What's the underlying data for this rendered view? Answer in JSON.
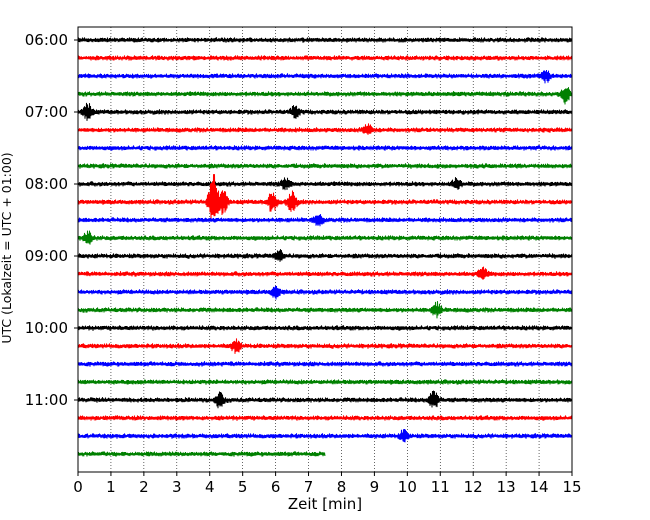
{
  "chart_data": {
    "type": "line",
    "title": "",
    "xlabel": "Zeit  [min]",
    "ylabel": "UTC (Lokalzeit = UTC + 01:00)",
    "xlim": [
      0,
      15
    ],
    "x_ticks": [
      0,
      1,
      2,
      3,
      4,
      5,
      6,
      7,
      8,
      9,
      10,
      11,
      12,
      13,
      14,
      15
    ],
    "y_ticks": [
      "06:00",
      "07:00",
      "08:00",
      "09:00",
      "10:00",
      "11:00"
    ],
    "grid": "vertical dotted",
    "trace_interval_min": 15,
    "colors_cycle": [
      "#000000",
      "#ff0000",
      "#0000ff",
      "#008000"
    ],
    "traces": [
      {
        "start": "06:00",
        "color": "#000000",
        "end_min": 15
      },
      {
        "start": "06:15",
        "color": "#ff0000",
        "end_min": 15
      },
      {
        "start": "06:30",
        "color": "#0000ff",
        "end_min": 15
      },
      {
        "start": "06:45",
        "color": "#008000",
        "end_min": 15
      },
      {
        "start": "07:00",
        "color": "#000000",
        "end_min": 15
      },
      {
        "start": "07:15",
        "color": "#ff0000",
        "end_min": 15
      },
      {
        "start": "07:30",
        "color": "#0000ff",
        "end_min": 15
      },
      {
        "start": "07:45",
        "color": "#008000",
        "end_min": 15
      },
      {
        "start": "08:00",
        "color": "#000000",
        "end_min": 15
      },
      {
        "start": "08:15",
        "color": "#ff0000",
        "end_min": 15
      },
      {
        "start": "08:30",
        "color": "#0000ff",
        "end_min": 15
      },
      {
        "start": "08:45",
        "color": "#008000",
        "end_min": 15
      },
      {
        "start": "09:00",
        "color": "#000000",
        "end_min": 15
      },
      {
        "start": "09:15",
        "color": "#ff0000",
        "end_min": 15
      },
      {
        "start": "09:30",
        "color": "#0000ff",
        "end_min": 15
      },
      {
        "start": "09:45",
        "color": "#008000",
        "end_min": 15
      },
      {
        "start": "10:00",
        "color": "#000000",
        "end_min": 15
      },
      {
        "start": "10:15",
        "color": "#ff0000",
        "end_min": 15
      },
      {
        "start": "10:30",
        "color": "#0000ff",
        "end_min": 15
      },
      {
        "start": "10:45",
        "color": "#008000",
        "end_min": 15
      },
      {
        "start": "11:00",
        "color": "#000000",
        "end_min": 15
      },
      {
        "start": "11:15",
        "color": "#ff0000",
        "end_min": 15
      },
      {
        "start": "11:30",
        "color": "#0000ff",
        "end_min": 15
      },
      {
        "start": "11:45",
        "color": "#008000",
        "end_min": 7.5
      }
    ],
    "events": [
      {
        "trace": "07:00",
        "at_min": 0.3,
        "amplitude": 0.45
      },
      {
        "trace": "07:00",
        "at_min": 6.6,
        "amplitude": 0.3
      },
      {
        "trace": "07:15",
        "at_min": 8.8,
        "amplitude": 0.3
      },
      {
        "trace": "06:30",
        "at_min": 14.2,
        "amplitude": 0.3
      },
      {
        "trace": "06:45",
        "at_min": 14.8,
        "amplitude": 0.45
      },
      {
        "trace": "08:00",
        "at_min": 11.5,
        "amplitude": 0.3
      },
      {
        "trace": "08:00",
        "at_min": 6.3,
        "amplitude": 0.3
      },
      {
        "trace": "08:15",
        "at_min": 4.1,
        "amplitude": 1.6
      },
      {
        "trace": "08:15",
        "at_min": 4.4,
        "amplitude": 0.7
      },
      {
        "trace": "08:15",
        "at_min": 5.9,
        "amplitude": 0.55
      },
      {
        "trace": "08:15",
        "at_min": 6.5,
        "amplitude": 0.6
      },
      {
        "trace": "08:30",
        "at_min": 7.3,
        "amplitude": 0.3
      },
      {
        "trace": "08:45",
        "at_min": 0.3,
        "amplitude": 0.35
      },
      {
        "trace": "09:00",
        "at_min": 6.1,
        "amplitude": 0.3
      },
      {
        "trace": "09:15",
        "at_min": 12.3,
        "amplitude": 0.3
      },
      {
        "trace": "09:30",
        "at_min": 6.0,
        "amplitude": 0.3
      },
      {
        "trace": "09:45",
        "at_min": 10.9,
        "amplitude": 0.4
      },
      {
        "trace": "10:15",
        "at_min": 4.8,
        "amplitude": 0.35
      },
      {
        "trace": "11:00",
        "at_min": 4.3,
        "amplitude": 0.4
      },
      {
        "trace": "11:00",
        "at_min": 10.8,
        "amplitude": 0.55
      },
      {
        "trace": "11:30",
        "at_min": 9.9,
        "amplitude": 0.3
      }
    ]
  }
}
